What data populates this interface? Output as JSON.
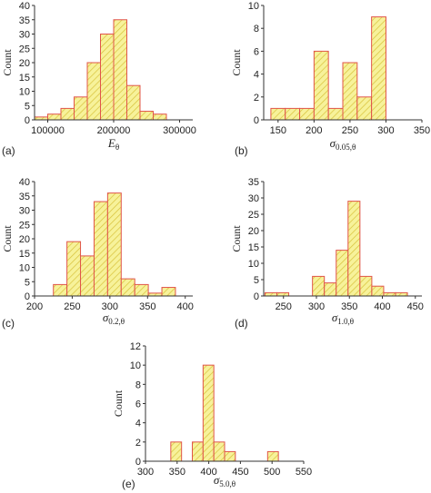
{
  "colors": {
    "bar_fill": "#f7f29a",
    "bar_stroke": "#e0554a",
    "hatch": "#d8c23a",
    "axis": "#333333"
  },
  "chart_data": [
    {
      "type": "bar",
      "panel_label": "(a)",
      "ylabel": "Count",
      "xlabel_main": "E",
      "xlabel_sub": "θ",
      "xlim": [
        80000,
        320000
      ],
      "ylim": [
        0,
        40
      ],
      "xticks": [
        100000,
        200000,
        300000
      ],
      "yticks": [
        0,
        5,
        10,
        15,
        20,
        25,
        30,
        35,
        40
      ],
      "bin_edges": [
        80000,
        100000,
        120000,
        140000,
        160000,
        180000,
        200000,
        220000,
        240000,
        260000,
        280000
      ],
      "values": [
        1,
        2,
        4,
        8,
        20,
        30,
        35,
        12,
        3,
        2
      ]
    },
    {
      "type": "bar",
      "panel_label": "(b)",
      "ylabel": "Count",
      "xlabel_main": "σ",
      "xlabel_sub": "0.05,θ",
      "xlim": [
        130,
        350
      ],
      "ylim": [
        0,
        10
      ],
      "xticks": [
        150,
        200,
        250,
        300,
        350
      ],
      "yticks": [
        0,
        2,
        4,
        6,
        8,
        10
      ],
      "bin_edges": [
        140,
        160,
        180,
        200,
        220,
        240,
        260,
        280,
        300
      ],
      "values": [
        1,
        1,
        1,
        6,
        1,
        5,
        2,
        9
      ]
    },
    {
      "type": "bar",
      "panel_label": "(c)",
      "ylabel": "Count",
      "xlabel_main": "σ",
      "xlabel_sub": "0.2,θ",
      "xlim": [
        200,
        410
      ],
      "ylim": [
        0,
        40
      ],
      "xticks": [
        200,
        250,
        300,
        350,
        400
      ],
      "yticks": [
        0,
        5,
        10,
        15,
        20,
        25,
        30,
        35,
        40
      ],
      "bin_edges": [
        225,
        243,
        261,
        279,
        297,
        315,
        333,
        351,
        369,
        387
      ],
      "values": [
        4,
        19,
        14,
        33,
        36,
        6,
        4,
        1,
        3
      ]
    },
    {
      "type": "bar",
      "panel_label": "(d)",
      "ylabel": "Count",
      "xlabel_main": "σ",
      "xlabel_sub": "1.0,θ",
      "xlim": [
        220,
        460
      ],
      "ylim": [
        0,
        35
      ],
      "xticks": [
        250,
        300,
        350,
        400,
        450
      ],
      "yticks": [
        0,
        5,
        10,
        15,
        20,
        25,
        30,
        35
      ],
      "bin_edges": [
        222,
        240,
        258,
        276,
        294,
        312,
        330,
        348,
        366,
        384,
        402,
        420,
        438
      ],
      "values": [
        1,
        1,
        0,
        0,
        6,
        4,
        14,
        29,
        6,
        3,
        1,
        1
      ]
    },
    {
      "type": "bar",
      "panel_label": "(e)",
      "ylabel": "Count",
      "xlabel_main": "σ",
      "xlabel_sub": "5.0,θ",
      "xlim": [
        300,
        550
      ],
      "ylim": [
        0,
        12
      ],
      "xticks": [
        300,
        350,
        400,
        450,
        500,
        550
      ],
      "yticks": [
        0,
        2,
        4,
        6,
        8,
        10,
        12
      ],
      "bin_edges": [
        340,
        357,
        374,
        391,
        408,
        425,
        442,
        459,
        476,
        493,
        510
      ],
      "values": [
        2,
        0,
        2,
        10,
        2,
        1,
        0,
        0,
        0,
        1
      ]
    }
  ]
}
